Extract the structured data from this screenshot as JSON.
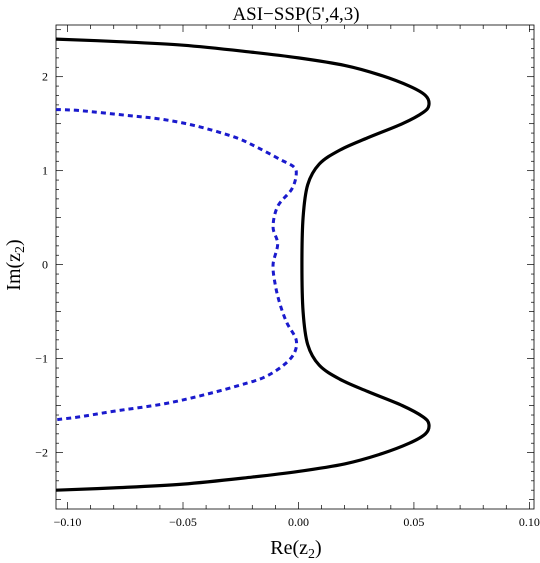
{
  "chart_data": {
    "type": "line",
    "title": "ASI−SSP(5',4,3)",
    "xlabel_main": "Re(z",
    "xlabel_sub": "2",
    "xlabel_close": ")",
    "ylabel_main": "Im(z",
    "ylabel_sub": "2",
    "ylabel_close": ")",
    "xlim": [
      -0.105,
      0.102
    ],
    "ylim": [
      -2.6,
      2.55
    ],
    "x_ticks": [
      {
        "value": -0.1,
        "label": "−0.10"
      },
      {
        "value": -0.05,
        "label": "−0.05"
      },
      {
        "value": 0.0,
        "label": "0.00"
      },
      {
        "value": 0.05,
        "label": "0.05"
      },
      {
        "value": 0.1,
        "label": "0.10"
      }
    ],
    "y_ticks": [
      {
        "value": -2,
        "label": "−2"
      },
      {
        "value": -1,
        "label": "−1"
      },
      {
        "value": 0,
        "label": "0"
      },
      {
        "value": 1,
        "label": "1"
      },
      {
        "value": 2,
        "label": "2"
      }
    ],
    "grid": false,
    "legend": "none",
    "series": [
      {
        "style": "solid",
        "color": "#000000",
        "points": [
          [
            -0.105,
            2.4
          ],
          [
            -0.08,
            2.375
          ],
          [
            -0.05,
            2.335
          ],
          [
            -0.02,
            2.26
          ],
          [
            0.0,
            2.2
          ],
          [
            0.02,
            2.12
          ],
          [
            0.035,
            2.02
          ],
          [
            0.048,
            1.9
          ],
          [
            0.055,
            1.8
          ],
          [
            0.0565,
            1.7
          ],
          [
            0.054,
            1.62
          ],
          [
            0.045,
            1.5
          ],
          [
            0.03,
            1.35
          ],
          [
            0.018,
            1.22
          ],
          [
            0.009,
            1.07
          ],
          [
            0.004,
            0.85
          ],
          [
            0.002,
            0.5
          ],
          [
            0.0015,
            0.0
          ],
          [
            0.002,
            -0.5
          ],
          [
            0.004,
            -0.85
          ],
          [
            0.009,
            -1.07
          ],
          [
            0.018,
            -1.22
          ],
          [
            0.03,
            -1.35
          ],
          [
            0.045,
            -1.5
          ],
          [
            0.054,
            -1.62
          ],
          [
            0.0565,
            -1.7
          ],
          [
            0.055,
            -1.8
          ],
          [
            0.048,
            -1.9
          ],
          [
            0.035,
            -2.02
          ],
          [
            0.02,
            -2.12
          ],
          [
            0.0,
            -2.2
          ],
          [
            -0.02,
            -2.26
          ],
          [
            -0.05,
            -2.335
          ],
          [
            -0.08,
            -2.375
          ],
          [
            -0.105,
            -2.4
          ]
        ]
      },
      {
        "style": "dashed",
        "color": "#1a1acd",
        "points": [
          [
            -0.105,
            1.65
          ],
          [
            -0.095,
            1.64
          ],
          [
            -0.075,
            1.59
          ],
          [
            -0.06,
            1.55
          ],
          [
            -0.045,
            1.48
          ],
          [
            -0.028,
            1.36
          ],
          [
            -0.018,
            1.25
          ],
          [
            -0.008,
            1.12
          ],
          [
            -0.002,
            1.04
          ],
          [
            -0.001,
            0.95
          ],
          [
            -0.003,
            0.8
          ],
          [
            -0.009,
            0.62
          ],
          [
            -0.011,
            0.4
          ],
          [
            -0.009,
            0.22
          ],
          [
            -0.011,
            0.0
          ],
          [
            -0.01,
            -0.22
          ],
          [
            -0.008,
            -0.42
          ],
          [
            -0.005,
            -0.62
          ],
          [
            -0.001,
            -0.8
          ],
          [
            -0.002,
            -0.95
          ],
          [
            -0.007,
            -1.08
          ],
          [
            -0.015,
            -1.2
          ],
          [
            -0.025,
            -1.28
          ],
          [
            -0.04,
            -1.38
          ],
          [
            -0.058,
            -1.48
          ],
          [
            -0.08,
            -1.56
          ],
          [
            -0.095,
            -1.62
          ],
          [
            -0.105,
            -1.65
          ]
        ]
      }
    ]
  }
}
